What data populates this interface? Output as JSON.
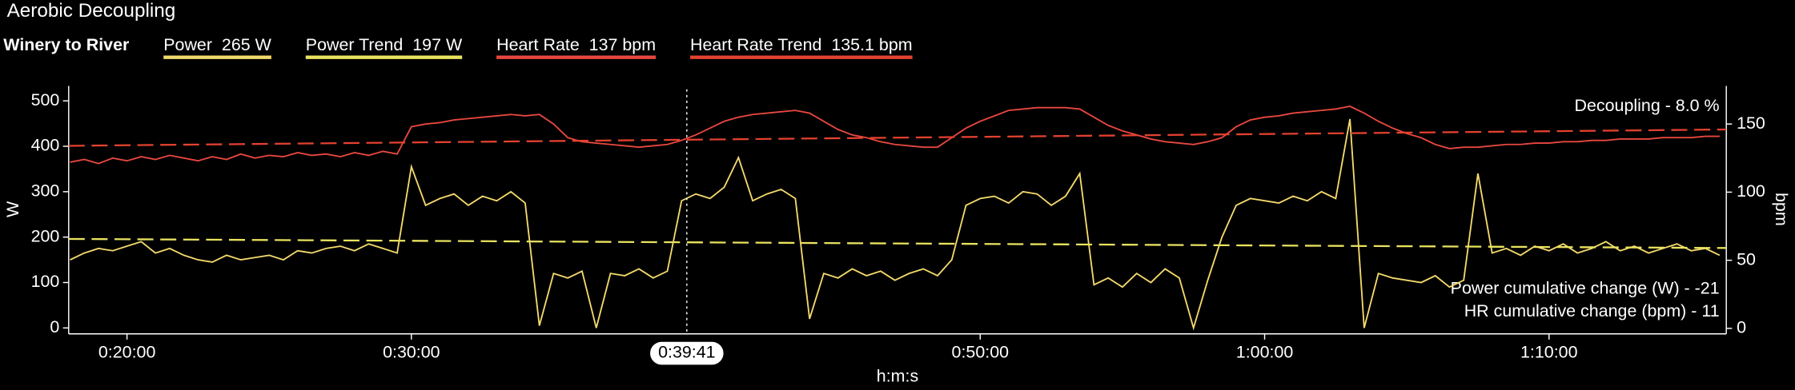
{
  "chart_data": {
    "type": "line",
    "title": "Aerobic Decoupling",
    "subtitle": "Winery to River",
    "xlabel": "h:m:s",
    "ylabel": "W",
    "y2label": "bpm",
    "xlim": [
      1077,
      4574
    ],
    "ylim": [
      -13,
      533
    ],
    "y2lim": [
      -4,
      178
    ],
    "xticks": [
      {
        "value": 1200,
        "label": "0:20:00"
      },
      {
        "value": 1800,
        "label": "0:30:00"
      },
      {
        "value": 3000,
        "label": "0:50:00"
      },
      {
        "value": 3600,
        "label": "1:00:00"
      },
      {
        "value": 4200,
        "label": "1:10:00"
      }
    ],
    "yticks": [
      0,
      100,
      200,
      300,
      400,
      500
    ],
    "y2ticks": [
      0,
      50,
      100,
      150
    ],
    "cursor": {
      "value": 2381,
      "label": "0:39:41"
    },
    "annotations": [
      "Decoupling - 8.0 %",
      "Power cumulative change (W) - -21",
      "HR cumulative change (bpm) - 11"
    ],
    "x": [
      1080,
      1110,
      1140,
      1170,
      1200,
      1230,
      1260,
      1290,
      1320,
      1350,
      1380,
      1410,
      1440,
      1470,
      1500,
      1530,
      1560,
      1590,
      1620,
      1650,
      1680,
      1710,
      1740,
      1770,
      1800,
      1830,
      1860,
      1890,
      1920,
      1950,
      1980,
      2010,
      2040,
      2070,
      2100,
      2130,
      2160,
      2190,
      2220,
      2250,
      2280,
      2310,
      2340,
      2370,
      2400,
      2430,
      2460,
      2490,
      2520,
      2550,
      2580,
      2610,
      2640,
      2670,
      2700,
      2730,
      2760,
      2790,
      2820,
      2850,
      2880,
      2910,
      2940,
      2970,
      3000,
      3030,
      3060,
      3090,
      3120,
      3150,
      3180,
      3210,
      3240,
      3270,
      3300,
      3330,
      3360,
      3390,
      3420,
      3450,
      3480,
      3510,
      3540,
      3570,
      3600,
      3630,
      3660,
      3690,
      3720,
      3750,
      3780,
      3810,
      3840,
      3870,
      3900,
      3930,
      3960,
      3990,
      4020,
      4050,
      4080,
      4110,
      4140,
      4170,
      4200,
      4230,
      4260,
      4290,
      4320,
      4350,
      4380,
      4410,
      4440,
      4470,
      4500,
      4530,
      4560
    ],
    "series": [
      {
        "name": "Power  265 W",
        "color": "#f3d96c",
        "axis": "y",
        "values": [
          150,
          165,
          175,
          170,
          180,
          190,
          165,
          175,
          160,
          150,
          145,
          160,
          150,
          155,
          160,
          150,
          170,
          165,
          175,
          180,
          170,
          185,
          175,
          165,
          355,
          270,
          285,
          295,
          270,
          290,
          280,
          300,
          275,
          5,
          120,
          110,
          125,
          0,
          120,
          115,
          130,
          110,
          125,
          280,
          295,
          285,
          310,
          375,
          280,
          295,
          305,
          285,
          20,
          120,
          110,
          130,
          115,
          125,
          105,
          120,
          130,
          115,
          150,
          270,
          285,
          290,
          275,
          300,
          295,
          270,
          290,
          340,
          95,
          110,
          90,
          120,
          100,
          130,
          110,
          0,
          105,
          200,
          270,
          285,
          280,
          275,
          290,
          280,
          300,
          285,
          460,
          0,
          120,
          110,
          105,
          100,
          115,
          90,
          105,
          340,
          165,
          175,
          160,
          180,
          170,
          185,
          165,
          175,
          190,
          170,
          180,
          165,
          175,
          185,
          170,
          175,
          160
        ]
      },
      {
        "name": "Power Trend  197 W",
        "color": "#e9e35f",
        "axis": "y",
        "dashed": true,
        "x": [
          1077,
          4574
        ],
        "values": [
          196,
          176
        ]
      },
      {
        "name": "Heart Rate  137 bpm",
        "color": "#e8473f",
        "axis": "y2",
        "values": [
          122,
          124,
          121,
          125,
          123,
          126,
          124,
          127,
          125,
          123,
          126,
          124,
          128,
          125,
          127,
          126,
          129,
          127,
          128,
          126,
          129,
          127,
          130,
          128,
          148,
          150,
          151,
          153,
          154,
          155,
          156,
          157,
          156,
          157,
          150,
          140,
          137,
          136,
          135,
          134,
          133,
          134,
          135,
          138,
          142,
          147,
          152,
          155,
          157,
          158,
          159,
          160,
          158,
          152,
          146,
          142,
          140,
          137,
          135,
          134,
          133,
          133,
          140,
          147,
          152,
          156,
          160,
          161,
          162,
          162,
          162,
          161,
          155,
          149,
          145,
          142,
          139,
          137,
          136,
          135,
          137,
          140,
          148,
          153,
          155,
          156,
          158,
          159,
          160,
          161,
          163,
          158,
          152,
          147,
          143,
          140,
          135,
          132,
          133,
          133,
          134,
          135,
          135,
          136,
          136,
          137,
          137,
          138,
          138,
          139,
          139,
          139,
          140,
          140,
          140,
          141,
          141
        ]
      },
      {
        "name": "Heart Rate Trend  135.1 bpm",
        "color": "#e3412f",
        "axis": "y2",
        "dashed": true,
        "x": [
          1077,
          4574
        ],
        "values": [
          134,
          146
        ]
      }
    ]
  }
}
